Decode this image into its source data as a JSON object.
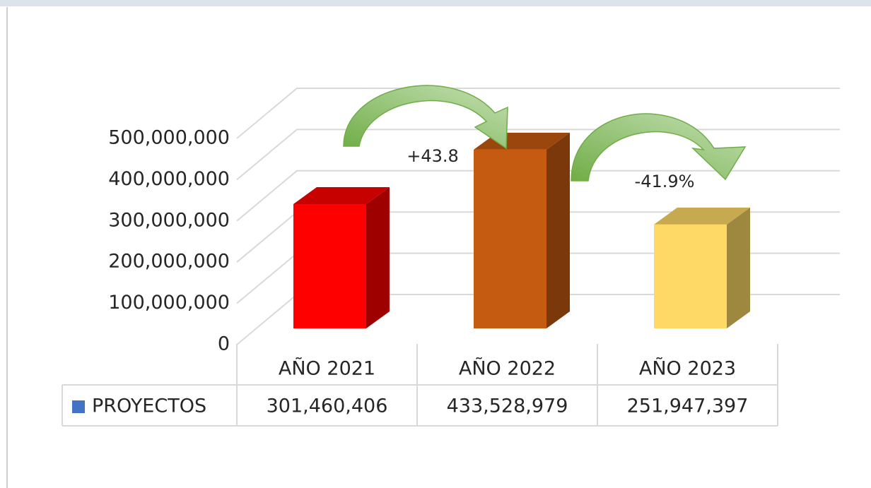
{
  "chart_data": {
    "type": "bar3d",
    "categories": [
      "AÑO 2021",
      "AÑO 2022",
      "AÑO 2023"
    ],
    "series": [
      {
        "name": "PROYECTOS",
        "color": "#4472c4",
        "values": [
          301460406,
          433528979,
          251947397
        ],
        "value_labels": [
          "301,460,406",
          "433,528,979",
          "251,947,397"
        ],
        "colors": [
          "#ff0000",
          "#c55a11",
          "#ffd966"
        ]
      }
    ],
    "ylim": [
      0,
      500000000
    ],
    "yticks": [
      {
        "value": 0,
        "label": "0"
      },
      {
        "value": 100000000,
        "label": "100,000,000"
      },
      {
        "value": 200000000,
        "label": "200,000,000"
      },
      {
        "value": 300000000,
        "label": "300,000,000"
      },
      {
        "value": 400000000,
        "label": "400,000,000"
      },
      {
        "value": 500000000,
        "label": "500,000,000"
      }
    ],
    "grid": true,
    "annotations": [
      "+43.8",
      "-41.9%"
    ]
  }
}
